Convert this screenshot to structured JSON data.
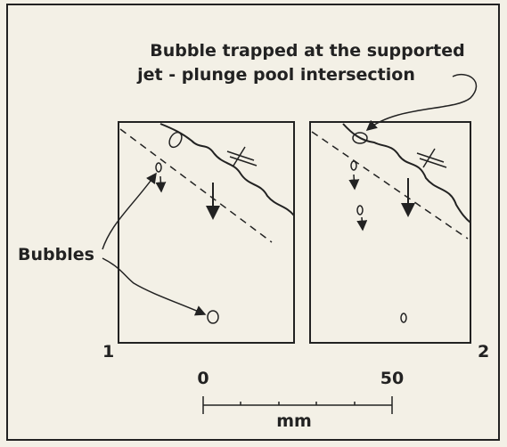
{
  "annotation": {
    "line1": "Bubble trapped at the supported",
    "line2": "jet - plunge pool intersection"
  },
  "bubbles_label": "Bubbles",
  "panels": [
    {
      "label": "1"
    },
    {
      "label": "2"
    }
  ],
  "scale": {
    "start": "0",
    "end": "50",
    "unit": "mm"
  }
}
